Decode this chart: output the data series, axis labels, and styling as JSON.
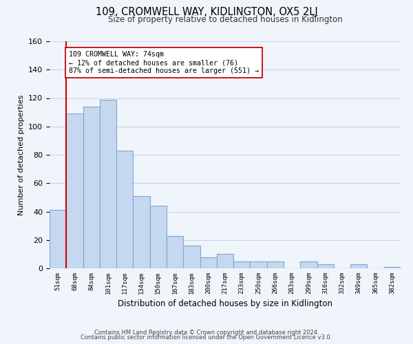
{
  "title": "109, CROMWELL WAY, KIDLINGTON, OX5 2LJ",
  "subtitle": "Size of property relative to detached houses in Kidlington",
  "xlabel": "Distribution of detached houses by size in Kidlington",
  "ylabel": "Number of detached properties",
  "bar_labels": [
    "51sqm",
    "68sqm",
    "84sqm",
    "101sqm",
    "117sqm",
    "134sqm",
    "150sqm",
    "167sqm",
    "183sqm",
    "200sqm",
    "217sqm",
    "233sqm",
    "250sqm",
    "266sqm",
    "283sqm",
    "299sqm",
    "316sqm",
    "332sqm",
    "349sqm",
    "365sqm",
    "382sqm"
  ],
  "bar_heights": [
    41,
    109,
    114,
    119,
    83,
    51,
    44,
    23,
    16,
    8,
    10,
    5,
    5,
    5,
    0,
    5,
    3,
    0,
    3,
    0,
    1
  ],
  "bar_color": "#c5d8f0",
  "bar_edge_color": "#7ba8d0",
  "vline_x": 1.0,
  "vline_color": "#cc0000",
  "annotation_text": "109 CROMWELL WAY: 74sqm\n← 12% of detached houses are smaller (76)\n87% of semi-detached houses are larger (551) →",
  "annotation_box_color": "#ffffff",
  "annotation_box_edge": "#cc0000",
  "ylim": [
    0,
    160
  ],
  "yticks": [
    0,
    20,
    40,
    60,
    80,
    100,
    120,
    140,
    160
  ],
  "footer_line1": "Contains HM Land Registry data © Crown copyright and database right 2024.",
  "footer_line2": "Contains public sector information licensed under the Open Government Licence v3.0.",
  "background_color": "#f0f4fb",
  "grid_color": "#c8d4e8"
}
